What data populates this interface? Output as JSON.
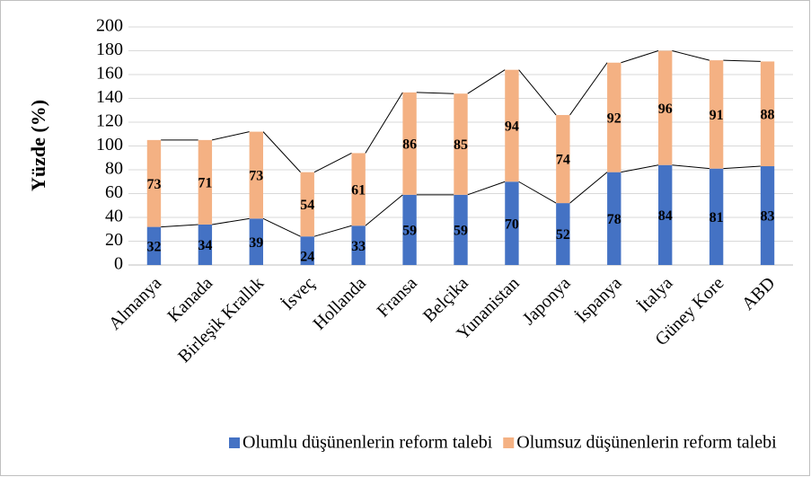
{
  "chart_data": {
    "type": "stacked_bar",
    "y_label": "Yüzde (%)",
    "categories": [
      "Almanya",
      "Kanada",
      "Birleşik Krallık",
      "İsveç",
      "Hollanda",
      "Fransa",
      "Belçika",
      "Yunanistan",
      "Japonya",
      "İspanya",
      "İtalya",
      "Güney Kore",
      "ABD"
    ],
    "series": [
      {
        "name": "Olumlu düşünenlerin reform talebi",
        "color": "#4472c4",
        "values": [
          32,
          34,
          39,
          24,
          33,
          59,
          59,
          70,
          52,
          78,
          84,
          81,
          83
        ]
      },
      {
        "name": "Olumsuz düşünenlerin reform talebi",
        "color": "#f4b183",
        "values": [
          73,
          71,
          73,
          54,
          61,
          86,
          85,
          94,
          74,
          92,
          96,
          91,
          88
        ]
      }
    ],
    "ylim": [
      0,
      200
    ],
    "yticks": [
      0,
      20,
      40,
      60,
      80,
      100,
      120,
      140,
      160,
      180,
      200
    ],
    "grid": true,
    "legend": "bottom"
  }
}
